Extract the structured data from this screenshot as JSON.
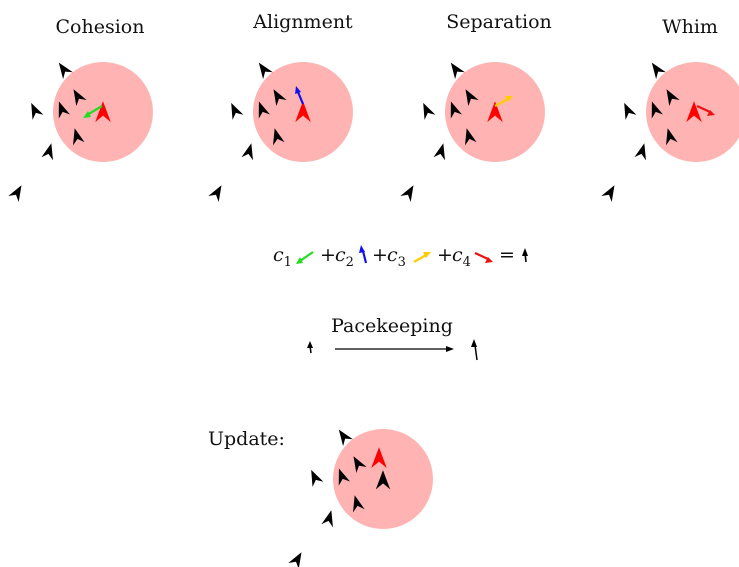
{
  "panels": [
    {
      "title": "Cohesion",
      "arrow_color": "#22dd22"
    },
    {
      "title": "Alignment",
      "arrow_color": "#1111ee"
    },
    {
      "title": "Separation",
      "arrow_color": "#ffcc00"
    },
    {
      "title": "Whim",
      "arrow_color": "#ee1111"
    }
  ],
  "equation": {
    "terms": [
      {
        "coef": "c",
        "sub": "1",
        "color": "#22dd22"
      },
      {
        "coef": "c",
        "sub": "2",
        "color": "#1111ee"
      },
      {
        "coef": "c",
        "sub": "3",
        "color": "#ffcc00"
      },
      {
        "coef": "c",
        "sub": "4",
        "color": "#ee1111"
      }
    ],
    "plus": "+",
    "equals": "="
  },
  "pacekeeping": {
    "label": "Pacekeeping"
  },
  "update": {
    "label": "Update:"
  },
  "colors": {
    "neighborhood": "#ffb3b3",
    "focal_boid": "#ff0000",
    "boid": "#000000"
  }
}
